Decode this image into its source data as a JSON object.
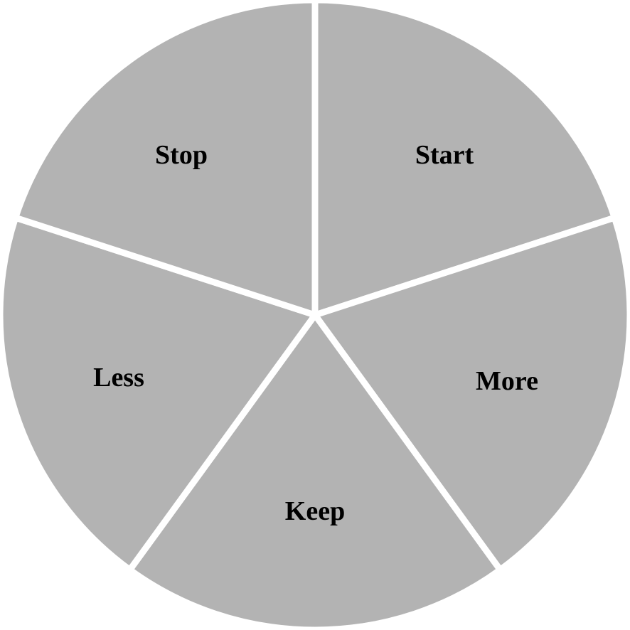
{
  "diagram": {
    "fill_color": "#b3b3b3",
    "divider_color": "#ffffff",
    "text_color": "#000000",
    "segments": [
      {
        "id": "start",
        "label": "Start"
      },
      {
        "id": "more",
        "label": "More"
      },
      {
        "id": "keep",
        "label": "Keep"
      },
      {
        "id": "less",
        "label": "Less"
      },
      {
        "id": "stop",
        "label": "Stop"
      }
    ]
  }
}
